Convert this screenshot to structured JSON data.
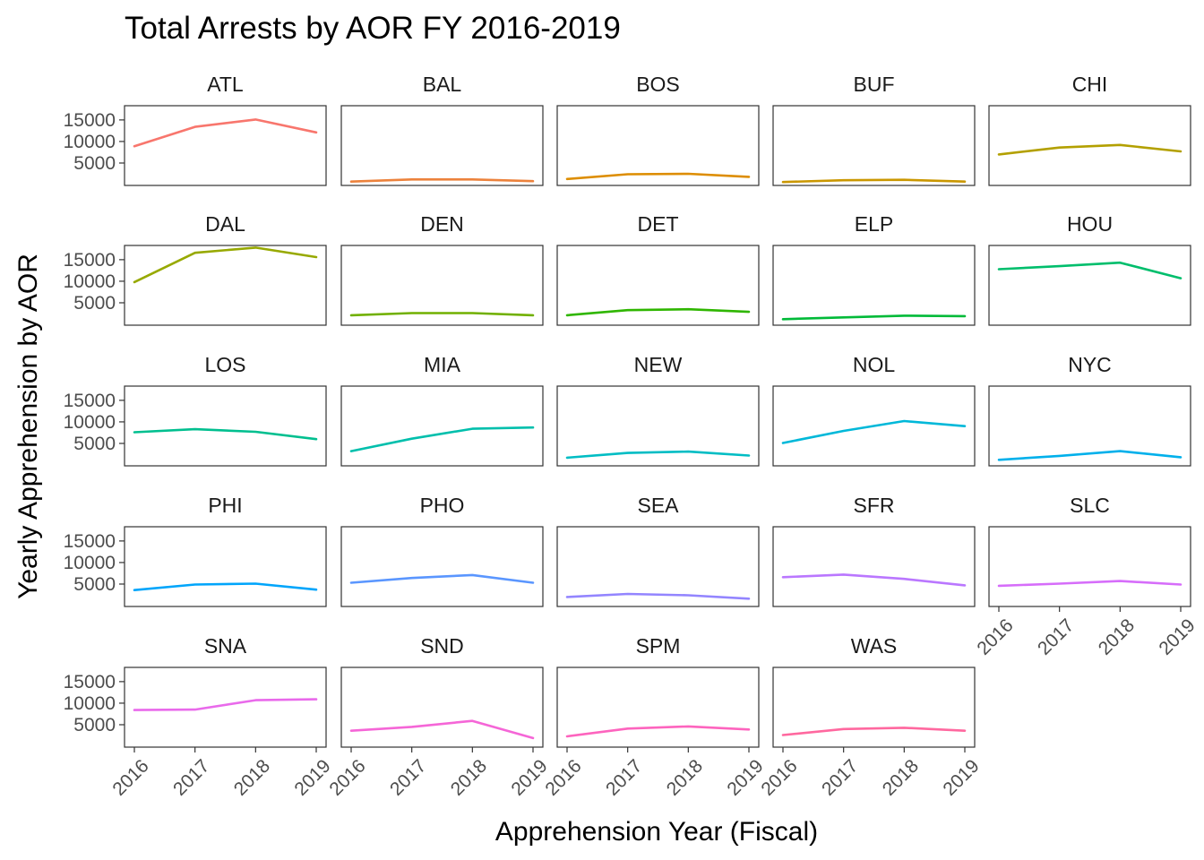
{
  "chart_data": {
    "type": "line",
    "title": "Total Arrests by AOR FY 2016-2019",
    "xlabel": "Apprehension Year (Fiscal)",
    "ylabel": "Yearly Apprehension by AOR",
    "x": [
      "2016",
      "2017",
      "2018",
      "2019"
    ],
    "ylim": [
      -200,
      18300
    ],
    "y_ticks": [
      "5000",
      "10000",
      "15000"
    ],
    "y_tick_values": [
      5000,
      10000,
      15000
    ],
    "grid": false,
    "legend": "none",
    "facets": [
      {
        "name": "ATL",
        "color": "#F8766D",
        "values": [
          8900,
          13400,
          15100,
          12100
        ]
      },
      {
        "name": "BAL",
        "color": "#EC823C",
        "values": [
          700,
          1200,
          1200,
          800
        ]
      },
      {
        "name": "BOS",
        "color": "#DD8D00",
        "values": [
          1300,
          2400,
          2500,
          1800
        ]
      },
      {
        "name": "BUF",
        "color": "#CA9700",
        "values": [
          600,
          1000,
          1100,
          700
        ]
      },
      {
        "name": "CHI",
        "color": "#B3A000",
        "values": [
          7000,
          8600,
          9200,
          7700
        ]
      },
      {
        "name": "DAL",
        "color": "#97A900",
        "values": [
          9800,
          16600,
          17800,
          15600
        ]
      },
      {
        "name": "DEN",
        "color": "#71B000",
        "values": [
          2100,
          2600,
          2600,
          2100
        ]
      },
      {
        "name": "DET",
        "color": "#2FB600",
        "values": [
          2100,
          3300,
          3500,
          2900
        ]
      },
      {
        "name": "ELP",
        "color": "#00BA38",
        "values": [
          1200,
          1600,
          2000,
          1900
        ]
      },
      {
        "name": "HOU",
        "color": "#00BE6C",
        "values": [
          12800,
          13500,
          14300,
          10700
        ]
      },
      {
        "name": "LOS",
        "color": "#00BF8F",
        "values": [
          7600,
          8300,
          7700,
          6000
        ]
      },
      {
        "name": "MIA",
        "color": "#00BFAC",
        "values": [
          3200,
          6100,
          8400,
          8700
        ]
      },
      {
        "name": "NEW",
        "color": "#00BDC4",
        "values": [
          1700,
          2800,
          3100,
          2200
        ]
      },
      {
        "name": "NOL",
        "color": "#00B8D9",
        "values": [
          5100,
          7900,
          10200,
          9000
        ]
      },
      {
        "name": "NYC",
        "color": "#00B0EB",
        "values": [
          1200,
          2100,
          3200,
          1800
        ]
      },
      {
        "name": "PHI",
        "color": "#00A5FB",
        "values": [
          3600,
          4900,
          5100,
          3700
        ]
      },
      {
        "name": "PHO",
        "color": "#5A96FF",
        "values": [
          5300,
          6400,
          7100,
          5300
        ]
      },
      {
        "name": "SEA",
        "color": "#9385FF",
        "values": [
          2000,
          2700,
          2400,
          1600
        ]
      },
      {
        "name": "SFR",
        "color": "#BA77FF",
        "values": [
          6600,
          7200,
          6200,
          4700
        ]
      },
      {
        "name": "SLC",
        "color": "#D66DFA",
        "values": [
          4600,
          5100,
          5700,
          4900
        ]
      },
      {
        "name": "SNA",
        "color": "#E96AEB",
        "values": [
          8400,
          8500,
          10700,
          10900
        ]
      },
      {
        "name": "SND",
        "color": "#F566D7",
        "values": [
          3600,
          4500,
          5900,
          1900
        ]
      },
      {
        "name": "SPM",
        "color": "#FD64BE",
        "values": [
          2300,
          4100,
          4600,
          3900
        ]
      },
      {
        "name": "WAS",
        "color": "#FF689F",
        "values": [
          2600,
          4000,
          4300,
          3600
        ]
      }
    ]
  }
}
